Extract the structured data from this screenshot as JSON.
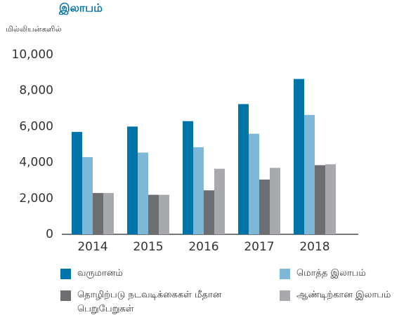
{
  "chart_data": {
    "type": "bar",
    "title": "இலாபம்",
    "y_label": "மில்லியன்களில்",
    "categories": [
      "2014",
      "2015",
      "2016",
      "2017",
      "2018"
    ],
    "series": [
      {
        "name": "வருமானம்",
        "color": "#0073a8",
        "values": [
          5700,
          6000,
          6300,
          7250,
          8650
        ]
      },
      {
        "name": "மொத்த இலாபம்",
        "color": "#7fb8d6",
        "values": [
          4300,
          4550,
          4850,
          5600,
          6650
        ]
      },
      {
        "name": "தொழிற்படு நடவடிக்கைகள் மீதான பெறுபேறுகள்",
        "color": "#6d6e71",
        "values": [
          2300,
          2200,
          2450,
          3050,
          3850
        ]
      },
      {
        "name": "ஆண்டிற்கான இலாபம்",
        "color": "#a7a9ac",
        "values": [
          2300,
          2200,
          3650,
          3700,
          3900
        ]
      }
    ],
    "ylim": [
      0,
      10000
    ],
    "yticks": [
      0,
      {
        "value": 2000,
        "label": "2,000"
      },
      {
        "value": 4000,
        "label": "4,000"
      },
      {
        "value": 6000,
        "label": "6,000"
      },
      {
        "value": 8000,
        "label": "8,000"
      },
      {
        "value": 10000,
        "label": "10,000"
      }
    ],
    "grid": false
  }
}
